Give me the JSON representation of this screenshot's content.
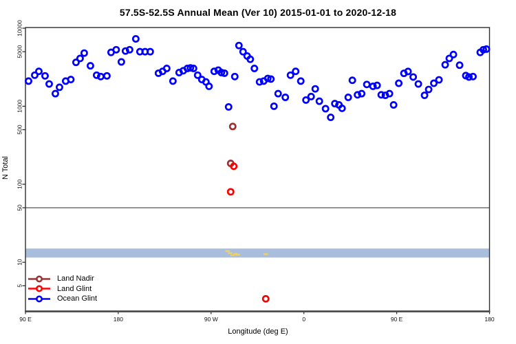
{
  "chart_data": {
    "type": "scatter",
    "title": "57.5S-52.5S Annual Mean (Ver 10)   2015-01-01 to 2020-12-18",
    "xlabel": "Longitude (deg E)",
    "ylabel": "N Total",
    "y_scale": "log10",
    "y_ticks": [
      10000,
      5000,
      1000,
      500,
      100,
      50,
      10,
      5
    ],
    "x_ticks": {
      "positions_deg": [
        90,
        180,
        270,
        360,
        450,
        540
      ],
      "labels": [
        "90 E",
        "180",
        "90 W",
        "0",
        "90 E",
        "180"
      ],
      "note": "longitude axis wraps eastward over 450 deg: 90E, 180, 90W, 0, 90E, 180"
    },
    "reference_line": {
      "value": 50,
      "color": "#8C8C8C"
    },
    "highlight_band": {
      "from": 11.5,
      "to": 15,
      "color": "#A9BEDC"
    },
    "flagged_marks": {
      "color": "#EDCF6E",
      "points": [
        [
          286,
          13.9
        ],
        [
          288.5,
          13.1
        ],
        [
          291,
          12.3
        ],
        [
          294,
          12.8
        ],
        [
          296,
          12.5
        ],
        [
          323,
          12.7
        ]
      ]
    },
    "series": [
      {
        "name": "Land Nadir",
        "color": "#993333",
        "points": [
          [
            291,
            550
          ],
          [
            289,
            185
          ]
        ]
      },
      {
        "name": "Land Glint",
        "color": "#FF0000",
        "points": [
          [
            292,
            170
          ],
          [
            289,
            80
          ],
          [
            323,
            3.4
          ]
        ]
      },
      {
        "name": "Ocean Glint",
        "color": "#0000FF",
        "points": [
          [
            93,
            2100
          ],
          [
            99,
            2500
          ],
          [
            103,
            2800
          ],
          [
            109,
            2450
          ],
          [
            113,
            1930
          ],
          [
            119,
            1450
          ],
          [
            123,
            1750
          ],
          [
            129,
            2100
          ],
          [
            134,
            2200
          ],
          [
            139,
            3650
          ],
          [
            143,
            4100
          ],
          [
            147,
            4800
          ],
          [
            153,
            3300
          ],
          [
            159,
            2500
          ],
          [
            163,
            2400
          ],
          [
            169,
            2450
          ],
          [
            173,
            4900
          ],
          [
            178,
            5300
          ],
          [
            183,
            3700
          ],
          [
            187,
            5100
          ],
          [
            191,
            5300
          ],
          [
            197,
            7300
          ],
          [
            201,
            5000
          ],
          [
            206,
            5000
          ],
          [
            211,
            5000
          ],
          [
            219,
            2650
          ],
          [
            223,
            2800
          ],
          [
            227,
            3050
          ],
          [
            233,
            2100
          ],
          [
            239,
            2700
          ],
          [
            243,
            2850
          ],
          [
            247,
            3050
          ],
          [
            250,
            3100
          ],
          [
            253,
            3050
          ],
          [
            257,
            2500
          ],
          [
            261,
            2200
          ],
          [
            265,
            2050
          ],
          [
            268,
            1800
          ],
          [
            273,
            2800
          ],
          [
            277,
            2900
          ],
          [
            280,
            2700
          ],
          [
            283,
            2650
          ],
          [
            287,
            980
          ],
          [
            293,
            2400
          ],
          [
            297,
            6000
          ],
          [
            301,
            5000
          ],
          [
            305,
            4400
          ],
          [
            308,
            4000
          ],
          [
            312,
            3050
          ],
          [
            317,
            2050
          ],
          [
            321,
            2100
          ],
          [
            325,
            2270
          ],
          [
            328,
            2230
          ],
          [
            331,
            1000
          ],
          [
            335,
            1450
          ],
          [
            342,
            1300
          ],
          [
            347,
            2500
          ],
          [
            352,
            2800
          ],
          [
            357,
            2100
          ],
          [
            362,
            1200
          ],
          [
            367,
            1330
          ],
          [
            371,
            1670
          ],
          [
            375,
            1160
          ],
          [
            381,
            930
          ],
          [
            386,
            720
          ],
          [
            390,
            1080
          ],
          [
            394,
            1040
          ],
          [
            397,
            940
          ],
          [
            403,
            1300
          ],
          [
            407,
            2150
          ],
          [
            412,
            1400
          ],
          [
            416,
            1450
          ],
          [
            421,
            1900
          ],
          [
            427,
            1800
          ],
          [
            431,
            1850
          ],
          [
            435,
            1400
          ],
          [
            439,
            1380
          ],
          [
            443,
            1450
          ],
          [
            447,
            1040
          ],
          [
            452,
            1970
          ],
          [
            457,
            2640
          ],
          [
            461,
            2790
          ],
          [
            466,
            2370
          ],
          [
            471,
            1930
          ],
          [
            477,
            1380
          ],
          [
            481,
            1640
          ],
          [
            486,
            1970
          ],
          [
            491,
            2180
          ],
          [
            497,
            3400
          ],
          [
            501,
            4100
          ],
          [
            505,
            4600
          ],
          [
            511,
            3360
          ],
          [
            517,
            2470
          ],
          [
            520,
            2370
          ],
          [
            524,
            2400
          ],
          [
            531,
            4900
          ],
          [
            534,
            5300
          ],
          [
            537,
            5400
          ]
        ]
      }
    ],
    "legend_position": "bottom-left"
  }
}
